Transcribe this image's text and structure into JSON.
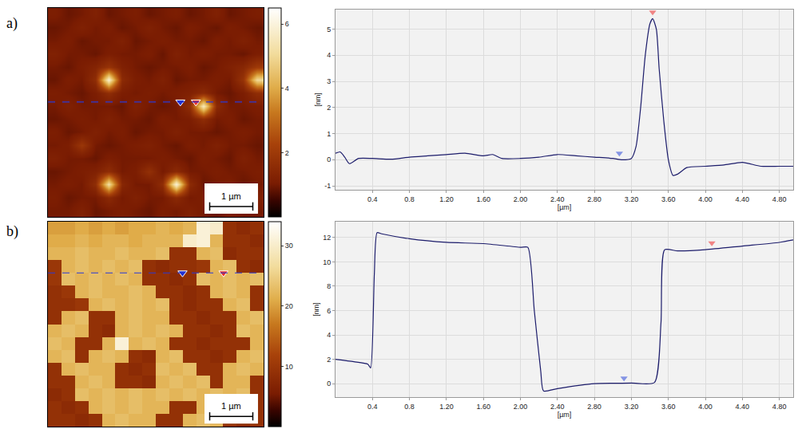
{
  "chart_data": [
    {
      "type": "heatmap",
      "panel": "a)",
      "xlim": [
        0,
        5
      ],
      "ylim": [
        5,
        0
      ],
      "tick_labels": false,
      "zlim": [
        0,
        6.5
      ],
      "zticks": [
        2,
        4,
        6
      ],
      "z": [
        [
          1.1,
          0.9,
          1.0,
          1.2,
          0.9,
          1.0,
          1.1,
          0.9,
          1.0,
          1.1,
          0.9,
          1.0,
          1.2,
          0.9,
          1.0,
          1.1
        ],
        [
          0.9,
          1.0,
          1.2,
          1.0,
          1.1,
          0.9,
          1.0,
          1.2,
          1.0,
          0.9,
          1.1,
          1.0,
          0.9,
          1.1,
          1.0,
          0.9
        ],
        [
          1.0,
          1.1,
          0.9,
          1.0,
          1.0,
          1.2,
          0.9,
          1.0,
          1.1,
          1.0,
          1.0,
          0.9,
          1.1,
          1.0,
          1.2,
          1.0
        ],
        [
          1.2,
          1.0,
          1.0,
          0.9,
          1.1,
          1.0,
          1.0,
          1.1,
          0.9,
          1.2,
          1.0,
          1.1,
          1.0,
          1.0,
          0.9,
          1.1
        ],
        [
          1.0,
          0.9,
          1.1,
          1.3,
          1.8,
          1.2,
          1.0,
          0.9,
          1.0,
          1.0,
          1.1,
          0.9,
          1.0,
          1.2,
          1.4,
          2.0
        ],
        [
          0.9,
          1.1,
          1.0,
          1.6,
          5.8,
          1.5,
          1.1,
          1.0,
          1.2,
          0.9,
          1.0,
          1.0,
          1.1,
          1.0,
          1.8,
          5.0
        ],
        [
          1.1,
          1.0,
          0.9,
          1.1,
          1.6,
          1.1,
          1.0,
          1.1,
          1.0,
          1.1,
          1.2,
          1.5,
          1.0,
          0.9,
          1.1,
          1.6
        ],
        [
          1.0,
          1.2,
          1.0,
          1.0,
          1.0,
          0.9,
          1.2,
          1.0,
          0.9,
          1.0,
          1.6,
          5.5,
          1.5,
          1.0,
          1.0,
          1.1
        ],
        [
          0.9,
          1.0,
          1.1,
          1.0,
          1.2,
          1.0,
          1.0,
          0.9,
          1.1,
          1.0,
          1.1,
          1.6,
          1.0,
          1.1,
          0.9,
          1.0
        ],
        [
          1.1,
          0.9,
          1.0,
          1.2,
          1.0,
          1.1,
          0.9,
          1.0,
          1.0,
          1.2,
          1.0,
          1.0,
          0.9,
          1.0,
          1.1,
          1.0
        ],
        [
          1.0,
          1.1,
          1.9,
          1.0,
          0.9,
          1.0,
          1.1,
          1.2,
          1.0,
          0.9,
          1.1,
          1.0,
          1.2,
          1.0,
          1.0,
          0.9
        ],
        [
          1.2,
          1.0,
          1.0,
          0.9,
          1.1,
          1.0,
          1.0,
          1.0,
          1.1,
          1.0,
          0.9,
          1.1,
          1.0,
          0.9,
          1.2,
          1.0
        ],
        [
          0.9,
          1.0,
          1.1,
          1.2,
          1.6,
          1.0,
          1.1,
          1.7,
          1.0,
          1.5,
          1.0,
          1.0,
          1.1,
          1.0,
          1.0,
          1.1
        ],
        [
          1.0,
          1.1,
          1.0,
          1.6,
          5.2,
          1.4,
          1.0,
          1.0,
          1.6,
          5.9,
          1.5,
          0.9,
          1.0,
          1.1,
          0.9,
          1.0
        ],
        [
          1.1,
          0.9,
          1.0,
          1.0,
          1.5,
          1.0,
          1.2,
          1.0,
          1.0,
          1.5,
          1.0,
          1.1,
          1.0,
          1.0,
          1.1,
          1.2
        ],
        [
          1.0,
          1.0,
          1.2,
          0.9,
          1.0,
          1.1,
          1.0,
          0.9,
          1.1,
          1.0,
          1.2,
          1.0,
          0.9,
          1.1,
          1.0,
          1.0
        ]
      ],
      "scale_bar": {
        "label": "1 µm",
        "length": 1
      },
      "profile_line": 2.25,
      "markers": [
        {
          "x": 3.07,
          "color": "#1f2fd0"
        },
        {
          "x": 3.43,
          "color": "#e8302a"
        }
      ]
    },
    {
      "type": "line",
      "x_label": "[µm]",
      "y_label": "[nm]",
      "color": "#1c1c6b",
      "grid": true,
      "xlim": [
        0,
        4.95
      ],
      "ylim": [
        -1.15,
        5.75
      ],
      "xticks": [
        0.4,
        0.8,
        {
          "value": 1.2,
          "label": "1.20"
        },
        {
          "value": 1.6,
          "label": "1.60"
        },
        {
          "value": 2,
          "label": "2.00"
        },
        {
          "value": 2.4,
          "label": "2.40"
        },
        {
          "value": 2.8,
          "label": "2.80"
        },
        {
          "value": 3.2,
          "label": "3.20"
        },
        {
          "value": 3.6,
          "label": "3.60"
        },
        {
          "value": 4,
          "label": "4.00"
        },
        {
          "value": 4.4,
          "label": "4.40"
        },
        {
          "value": 4.8,
          "label": "4.80"
        }
      ],
      "yticks": [
        -1,
        0,
        1,
        2,
        3,
        4,
        5
      ],
      "x": [
        0,
        0.05,
        0.1,
        0.15,
        0.25,
        0.4,
        0.6,
        0.8,
        1.0,
        1.2,
        1.4,
        1.6,
        1.7,
        1.8,
        2.0,
        2.2,
        2.4,
        2.6,
        2.8,
        3.0,
        3.1,
        3.2,
        3.25,
        3.3,
        3.35,
        3.4,
        3.43,
        3.47,
        3.5,
        3.55,
        3.6,
        3.65,
        3.7,
        3.8,
        4.0,
        4.2,
        4.4,
        4.6,
        4.8,
        4.95
      ],
      "values": [
        0.25,
        0.3,
        0.1,
        -0.15,
        0.05,
        0.05,
        0.02,
        0.1,
        0.15,
        0.2,
        0.25,
        0.15,
        0.2,
        0.05,
        0.05,
        0.1,
        0.2,
        0.15,
        0.1,
        0.05,
        0.0,
        0.05,
        0.5,
        2.0,
        4.0,
        5.2,
        5.4,
        5.0,
        3.5,
        1.5,
        0.0,
        -0.6,
        -0.55,
        -0.3,
        -0.25,
        -0.2,
        -0.1,
        -0.25,
        -0.25,
        -0.25
      ],
      "markers": [
        {
          "x": 3.07,
          "y": 0.25,
          "color": "#8494e4"
        },
        {
          "x": 3.43,
          "y": 5.65,
          "color": "#f08484"
        }
      ]
    },
    {
      "type": "heatmap",
      "panel": "b)",
      "xlim": [
        0,
        5
      ],
      "ylim": [
        5,
        0
      ],
      "tick_labels": false,
      "zlim": [
        0,
        34
      ],
      "zticks": [
        10,
        20,
        30
      ],
      "z": [
        [
          20,
          20,
          21,
          20,
          21,
          20,
          21,
          21,
          22,
          21,
          22,
          31,
          30,
          9,
          8,
          9
        ],
        [
          21,
          21,
          22,
          21,
          22,
          22,
          21,
          22,
          22,
          22,
          30,
          31,
          22,
          9,
          9,
          8
        ],
        [
          22,
          22,
          23,
          22,
          22,
          23,
          22,
          22,
          23,
          9,
          9,
          22,
          23,
          8,
          9,
          9
        ],
        [
          10,
          22,
          23,
          22,
          23,
          22,
          23,
          9,
          8,
          9,
          9,
          10,
          22,
          23,
          9,
          8
        ],
        [
          10,
          23,
          22,
          23,
          22,
          23,
          22,
          9,
          9,
          8,
          9,
          23,
          22,
          23,
          22,
          23
        ],
        [
          9,
          10,
          22,
          23,
          22,
          22,
          23,
          22,
          9,
          9,
          8,
          9,
          22,
          23,
          22,
          9
        ],
        [
          9,
          9,
          10,
          22,
          23,
          22,
          23,
          22,
          23,
          9,
          8,
          9,
          9,
          22,
          23,
          9
        ],
        [
          9,
          22,
          23,
          9,
          9,
          22,
          23,
          22,
          22,
          9,
          9,
          8,
          9,
          9,
          22,
          23
        ],
        [
          22,
          23,
          22,
          9,
          8,
          22,
          23,
          22,
          23,
          22,
          9,
          9,
          8,
          9,
          23,
          22
        ],
        [
          23,
          22,
          9,
          9,
          22,
          31,
          22,
          23,
          22,
          9,
          9,
          8,
          9,
          9,
          9,
          22
        ],
        [
          22,
          23,
          9,
          22,
          23,
          22,
          9,
          8,
          22,
          23,
          9,
          9,
          8,
          9,
          22,
          23
        ],
        [
          9,
          22,
          23,
          22,
          22,
          9,
          8,
          9,
          23,
          22,
          23,
          9,
          9,
          22,
          23,
          22
        ],
        [
          9,
          9,
          22,
          23,
          22,
          9,
          9,
          8,
          22,
          23,
          22,
          23,
          9,
          22,
          22,
          9
        ],
        [
          8,
          9,
          23,
          22,
          23,
          22,
          23,
          22,
          23,
          22,
          23,
          22,
          23,
          22,
          23,
          9
        ],
        [
          9,
          8,
          9,
          22,
          23,
          22,
          23,
          22,
          22,
          9,
          9,
          22,
          23,
          22,
          9,
          9
        ],
        [
          9,
          9,
          8,
          9,
          22,
          23,
          22,
          22,
          9,
          9,
          22,
          23,
          22,
          9,
          8,
          9
        ]
      ],
      "scale_bar": {
        "label": "1 µm",
        "length": 1
      },
      "profile_line": 1.25,
      "markers": [
        {
          "x": 3.12,
          "color": "#1f2fd0"
        },
        {
          "x": 4.07,
          "color": "#e8302a"
        }
      ]
    },
    {
      "type": "line",
      "x_label": "[µm]",
      "y_label": "[nm]",
      "color": "#1c1c6b",
      "grid": true,
      "xlim": [
        0,
        4.95
      ],
      "ylim": [
        -1.1,
        13.3
      ],
      "xticks": [
        0.4,
        0.8,
        {
          "value": 1.2,
          "label": "1.20"
        },
        {
          "value": 1.6,
          "label": "1.60"
        },
        {
          "value": 2,
          "label": "2.00"
        },
        {
          "value": 2.4,
          "label": "2.40"
        },
        {
          "value": 2.8,
          "label": "2.80"
        },
        {
          "value": 3.2,
          "label": "3.20"
        },
        {
          "value": 3.6,
          "label": "3.60"
        },
        {
          "value": 4,
          "label": "4.00"
        },
        {
          "value": 4.4,
          "label": "4.40"
        },
        {
          "value": 4.8,
          "label": "4.80"
        }
      ],
      "yticks": [
        0,
        2,
        4,
        6,
        8,
        10,
        12
      ],
      "x": [
        0,
        0.2,
        0.35,
        0.38,
        0.42,
        0.45,
        0.5,
        0.8,
        1.2,
        1.6,
        2.0,
        2.08,
        2.15,
        2.22,
        2.25,
        2.4,
        2.8,
        3.2,
        3.45,
        3.52,
        3.56,
        3.7,
        4.0,
        4.4,
        4.8,
        4.95
      ],
      "values": [
        2.0,
        1.8,
        1.6,
        1.3,
        9.0,
        12.4,
        12.3,
        11.9,
        11.6,
        11.5,
        11.2,
        11.2,
        6.0,
        1.0,
        -0.6,
        -0.4,
        0.0,
        0.05,
        0.1,
        5.0,
        11.0,
        10.9,
        11.0,
        11.3,
        11.6,
        11.8
      ],
      "markers": [
        {
          "x": 3.12,
          "y": 0.45,
          "color": "#8494e4"
        },
        {
          "x": 4.07,
          "y": 11.55,
          "color": "#f08484"
        }
      ]
    }
  ]
}
